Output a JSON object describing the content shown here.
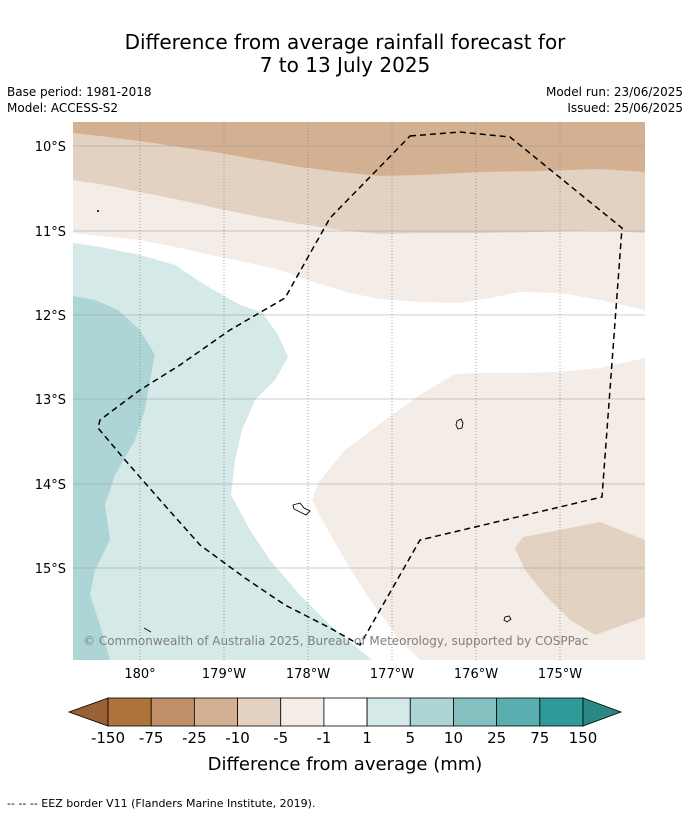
{
  "title": {
    "line1": "Difference from average rainfall forecast for",
    "line2": "7 to 13 July 2025"
  },
  "meta": {
    "base_period": "Base period: 1981-2018",
    "model": "Model: ACCESS-S2",
    "model_run": "Model run: 23/06/2025",
    "issued": "Issued: 25/06/2025"
  },
  "map": {
    "lat_labels": [
      "10°S",
      "11°S",
      "12°S",
      "13°S",
      "14°S",
      "15°S"
    ],
    "lon_labels": [
      "180°",
      "179°W",
      "178°W",
      "177°W",
      "176°W",
      "175°W"
    ],
    "copyright": "© Commonwealth of Australia 2025, Bureau of Meteorology, supported by COSPPac",
    "eez_label": "EEZ border"
  },
  "colorbar": {
    "ticks": [
      "-150",
      "-75",
      "-25",
      "-10",
      "-5",
      "-1",
      "1",
      "5",
      "10",
      "25",
      "75",
      "150"
    ],
    "colors": [
      "#ad733b",
      "#c09068",
      "#d4b092",
      "#e3d1c1",
      "#f4ece6",
      "#ffffff",
      "#d4e9e8",
      "#add5d6",
      "#84c0c0",
      "#5aaeb0",
      "#2e9a97"
    ],
    "under_color": "#9a6234",
    "over_color": "#2a8783",
    "label": "Difference from average (mm)"
  },
  "footer": {
    "text": "--  --  -- EEZ border V11 (Flanders Marine Institute, 2019)."
  }
}
